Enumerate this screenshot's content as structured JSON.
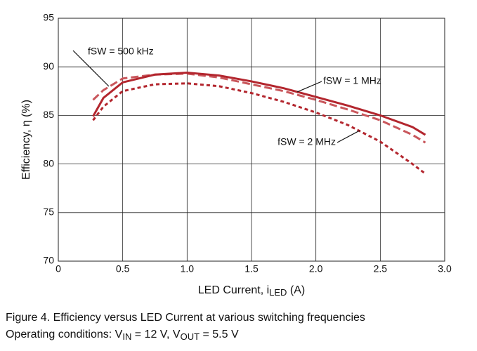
{
  "chart_data": {
    "type": "line",
    "x_label": [
      "LED Current, i",
      "LED",
      " (A)"
    ],
    "y_label": "Efficiency, η (%)",
    "caption": {
      "line1": "Figure 4. Efficiency versus LED Current at various switching frequencies",
      "line2": [
        "Operating conditions: V",
        "IN",
        " = 12 V, V",
        "OUT",
        " = 5.5 V"
      ]
    },
    "xlim": [
      0,
      3
    ],
    "xticks": [
      0,
      0.5,
      {
        "value": 1,
        "label": "1.0"
      },
      1.5,
      {
        "value": 2,
        "label": "2.0"
      },
      2.5,
      {
        "value": 3,
        "label": "3.0"
      }
    ],
    "ylim": [
      70,
      95
    ],
    "yticks": [
      70,
      75,
      80,
      85,
      90,
      95
    ],
    "grid": true,
    "x": [
      0.27,
      0.35,
      0.5,
      0.75,
      1.0,
      1.25,
      1.5,
      1.75,
      2.0,
      2.25,
      2.5,
      2.75,
      2.85
    ],
    "series": [
      {
        "name": "fSW = 500 kHz",
        "color": "#c9575c",
        "dash": "long",
        "values": [
          86.6,
          87.6,
          88.8,
          89.2,
          89.3,
          88.9,
          88.2,
          87.5,
          86.6,
          85.6,
          84.5,
          83.0,
          82.2
        ]
      },
      {
        "name": "fSW = 1 MHz",
        "color": "#b3262e",
        "dash": "solid",
        "values": [
          84.9,
          86.8,
          88.4,
          89.2,
          89.4,
          89.1,
          88.5,
          87.8,
          86.9,
          86.0,
          85.0,
          83.8,
          83.0
        ]
      },
      {
        "name": "fSW = 2 MHz",
        "color": "#b3262e",
        "dash": "short",
        "values": [
          84.5,
          85.9,
          87.5,
          88.2,
          88.3,
          88.0,
          87.3,
          86.4,
          85.3,
          84.0,
          82.3,
          80.0,
          79.0
        ]
      }
    ]
  }
}
